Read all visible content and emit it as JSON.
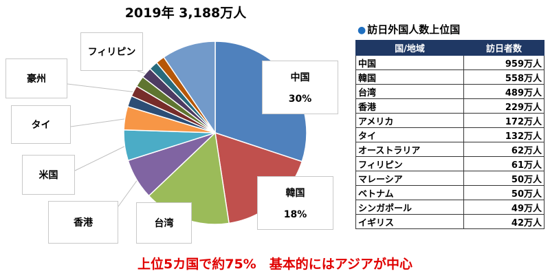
{
  "chart_data": {
    "type": "pie",
    "title": "2019年 3,188万人",
    "slices": [
      {
        "label": "中国",
        "percent_label": "30%",
        "value": 959,
        "color": "#4f81bd"
      },
      {
        "label": "韓国",
        "percent_label": "18%",
        "value": 558,
        "color": "#c0504d"
      },
      {
        "label": "台湾",
        "value": 489,
        "color": "#9bbb59"
      },
      {
        "label": "香港",
        "value": 229,
        "color": "#8064a2"
      },
      {
        "label": "米国",
        "value": 172,
        "color": "#4bacc6"
      },
      {
        "label": "タイ",
        "value": 132,
        "color": "#f79646"
      },
      {
        "label": "",
        "value": 62,
        "color": "#2c4d75"
      },
      {
        "label": "豪州",
        "value": 62,
        "color": "#772c2a"
      },
      {
        "label": "",
        "value": 61,
        "color": "#5f7530"
      },
      {
        "label": "フィリピン",
        "value": 61,
        "color": "#4d3b62"
      },
      {
        "label": "",
        "value": 50,
        "color": "#276a7c"
      },
      {
        "label": "",
        "value": 50,
        "color": "#b65708"
      },
      {
        "label": "",
        "value": 303,
        "color": "#729aca"
      }
    ]
  },
  "table": {
    "title": "訪日外国人数上位国",
    "headers": [
      "国/地域",
      "訪日者数"
    ],
    "rows": [
      [
        "中国",
        "959万人"
      ],
      [
        "韓国",
        "558万人"
      ],
      [
        "台湾",
        "489万人"
      ],
      [
        "香港",
        "229万人"
      ],
      [
        "アメリカ",
        "172万人"
      ],
      [
        "タイ",
        "132万人"
      ],
      [
        "オーストラリア",
        "62万人"
      ],
      [
        "フィリピン",
        "61万人"
      ],
      [
        "マレーシア",
        "50万人"
      ],
      [
        "ベトナム",
        "50万人"
      ],
      [
        "シンガポール",
        "49万人"
      ],
      [
        "イギリス",
        "42万人"
      ]
    ]
  },
  "caption": "上位5カ国で約75%　基本的にはアジアが中心"
}
